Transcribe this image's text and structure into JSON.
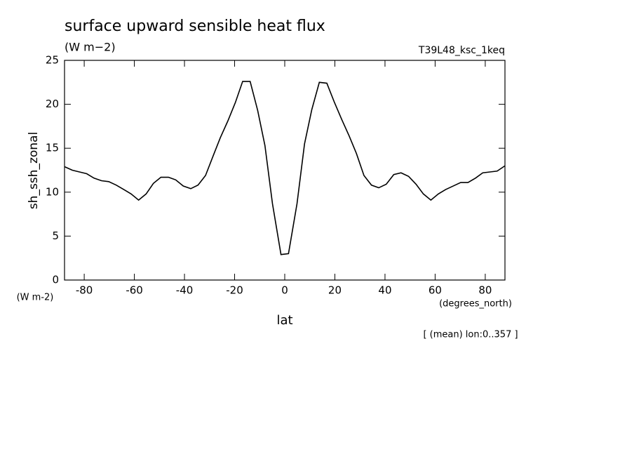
{
  "chart_data": {
    "type": "line",
    "title": "surface upward sensible heat flux",
    "units": "(W m−2)",
    "run_label": "T39L48_ksc_1keq",
    "ylabel": "sh_ssh_zonal",
    "y_units": "(W m-2)",
    "xlabel": "lat",
    "x_units": "(degrees_north)",
    "footnote": "[ (mean) lon:0..357 ]",
    "color": "#000000",
    "x": [
      -87.86,
      -84.75,
      -81.9,
      -79.0,
      -76.1,
      -73.1,
      -70.2,
      -67.2,
      -64.2,
      -61.3,
      -58.3,
      -55.3,
      -52.4,
      -49.4,
      -46.4,
      -43.5,
      -40.5,
      -37.5,
      -34.6,
      -31.6,
      -28.6,
      -25.7,
      -22.7,
      -19.7,
      -16.8,
      -13.8,
      -10.8,
      -7.9,
      -4.9,
      -1.5,
      1.5,
      4.9,
      7.9,
      10.8,
      13.8,
      16.8,
      19.7,
      22.7,
      25.7,
      28.6,
      31.6,
      34.6,
      37.5,
      40.5,
      43.5,
      46.4,
      49.4,
      52.4,
      55.3,
      58.3,
      61.3,
      64.2,
      67.2,
      70.2,
      73.1,
      76.1,
      79.0,
      81.9,
      84.75,
      87.86
    ],
    "values": [
      12.9,
      12.5,
      12.3,
      12.1,
      11.6,
      11.3,
      11.2,
      10.8,
      10.3,
      9.8,
      9.1,
      9.8,
      11.0,
      11.7,
      11.7,
      11.4,
      10.7,
      10.4,
      10.8,
      11.9,
      14.1,
      16.2,
      18.1,
      20.2,
      22.6,
      22.6,
      19.3,
      15.3,
      8.7,
      2.9,
      3.0,
      8.7,
      15.5,
      19.4,
      22.5,
      22.4,
      20.3,
      18.3,
      16.4,
      14.4,
      11.9,
      10.8,
      10.5,
      10.9,
      12.0,
      12.2,
      11.8,
      10.9,
      9.8,
      9.1,
      9.8,
      10.3,
      10.7,
      11.1,
      11.1,
      11.6,
      12.2,
      12.3,
      12.4,
      13.0
    ],
    "xlim": [
      -87.86,
      87.86
    ],
    "xticks": [
      -80,
      -60,
      -40,
      -20,
      0,
      20,
      40,
      60,
      80
    ],
    "ylim": [
      0,
      25
    ],
    "yticks": [
      0,
      5,
      10,
      15,
      20,
      25
    ]
  }
}
